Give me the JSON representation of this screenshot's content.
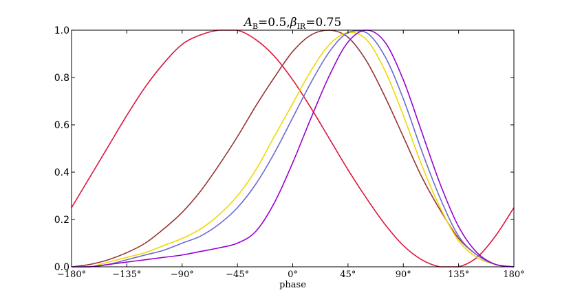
{
  "chart_data": {
    "type": "line",
    "title": "A_B=0.5,  β_IR=0.75",
    "title_parts": {
      "a_symbol": "A",
      "a_sub": "B",
      "a_value": "=0.5,",
      "b_symbol": "β",
      "b_sub": "IR",
      "b_value": "=0.75"
    },
    "xlabel": "phase",
    "ylabel": "",
    "xlim": [
      -180,
      180
    ],
    "ylim": [
      0.0,
      1.0
    ],
    "x_ticks": [
      -180,
      -135,
      -90,
      -45,
      0,
      45,
      90,
      135,
      180
    ],
    "x_tick_labels": [
      "−180°",
      "−135°",
      "−90°",
      "−45°",
      "0°",
      "45°",
      "90°",
      "135°",
      "180°"
    ],
    "y_ticks": [
      0.0,
      0.2,
      0.4,
      0.6,
      0.8,
      1.0
    ],
    "y_tick_labels": [
      "0.0",
      "0.2",
      "0.4",
      "0.6",
      "0.8",
      "1.0"
    ],
    "grid": false,
    "legend": "none",
    "x": [
      -180,
      -165,
      -150,
      -135,
      -120,
      -105,
      -90,
      -75,
      -60,
      -45,
      -30,
      -15,
      0,
      15,
      30,
      45,
      60,
      75,
      90,
      105,
      120,
      135,
      150,
      165,
      180
    ],
    "series": [
      {
        "color": "#dc143c",
        "values": [
          0.25,
          0.38,
          0.51,
          0.64,
          0.76,
          0.86,
          0.94,
          0.98,
          1.0,
          1.0,
          0.96,
          0.89,
          0.79,
          0.67,
          0.54,
          0.41,
          0.29,
          0.18,
          0.09,
          0.03,
          0.0,
          0.0,
          0.04,
          0.13,
          0.25
        ]
      },
      {
        "color": "#993333",
        "values": [
          0.0,
          0.01,
          0.03,
          0.06,
          0.1,
          0.16,
          0.23,
          0.32,
          0.43,
          0.55,
          0.68,
          0.8,
          0.91,
          0.98,
          1.0,
          0.97,
          0.87,
          0.72,
          0.55,
          0.38,
          0.24,
          0.12,
          0.05,
          0.01,
          0.0
        ]
      },
      {
        "color": "#f0d800",
        "values": [
          0.0,
          0.0,
          0.02,
          0.04,
          0.06,
          0.09,
          0.12,
          0.16,
          0.22,
          0.3,
          0.41,
          0.55,
          0.69,
          0.83,
          0.94,
          0.99,
          0.96,
          0.83,
          0.64,
          0.43,
          0.25,
          0.11,
          0.04,
          0.01,
          0.0
        ]
      },
      {
        "color": "#6a6ad0",
        "values": [
          0.0,
          0.0,
          0.01,
          0.03,
          0.05,
          0.07,
          0.1,
          0.13,
          0.18,
          0.25,
          0.35,
          0.48,
          0.63,
          0.78,
          0.91,
          0.99,
          0.99,
          0.89,
          0.71,
          0.49,
          0.29,
          0.13,
          0.05,
          0.01,
          0.0
        ]
      },
      {
        "color": "#9400d3",
        "values": [
          0.0,
          0.0,
          0.01,
          0.02,
          0.03,
          0.04,
          0.05,
          0.065,
          0.08,
          0.1,
          0.15,
          0.27,
          0.44,
          0.63,
          0.81,
          0.95,
          1.0,
          0.95,
          0.79,
          0.57,
          0.35,
          0.17,
          0.06,
          0.01,
          0.0
        ]
      }
    ]
  }
}
